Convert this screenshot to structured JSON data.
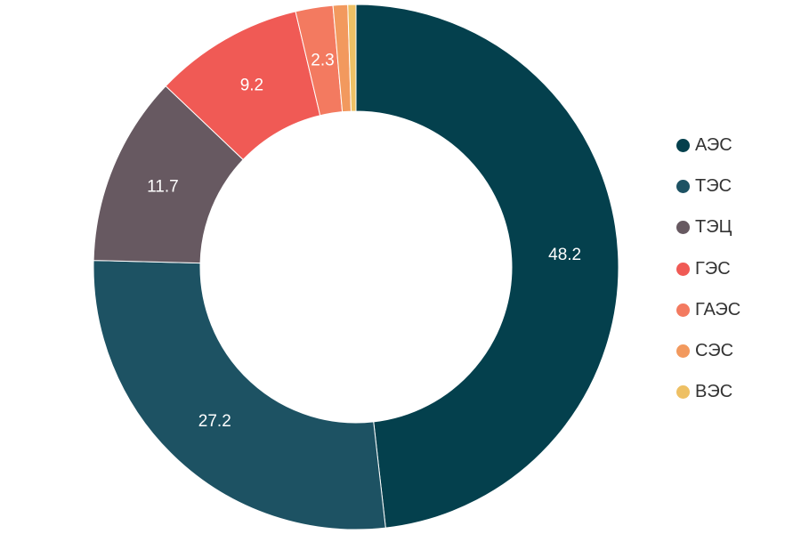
{
  "chart_data": {
    "type": "pie",
    "donut": true,
    "title": "",
    "categories": [
      "АЭС",
      "ТЭС",
      "ТЭЦ",
      "ГЭС",
      "ГАЭС",
      "СЭС",
      "ВЭС"
    ],
    "values": [
      48.2,
      27.2,
      11.7,
      9.2,
      2.3,
      0.9,
      0.5
    ],
    "data_labels": [
      "48.2",
      "27.2",
      "11.7",
      "9.2",
      "2.3",
      "",
      ""
    ],
    "colors": [
      "#04404d",
      "#1d5263",
      "#675961",
      "#f05a55",
      "#f37a60",
      "#f2995e",
      "#eec064"
    ],
    "legend_position": "right"
  }
}
